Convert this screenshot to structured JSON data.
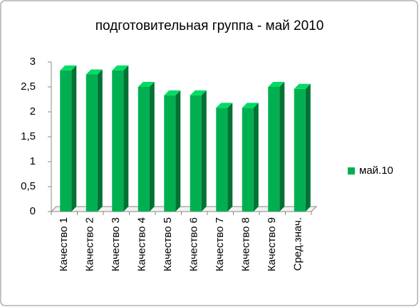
{
  "chart_data": {
    "type": "bar3d",
    "title": "подготовительная группа - май 2010",
    "categories": [
      "Качество 1",
      "Качество 2",
      "Качество 3",
      "Качество 4",
      "Качество 5",
      "Качество 6",
      "Качество 7",
      "Качество 8",
      "Качество 9",
      "Сред.знач."
    ],
    "series": [
      {
        "name": "май.10",
        "color": "#00b050",
        "values": [
          2.83,
          2.75,
          2.83,
          2.5,
          2.33,
          2.33,
          2.08,
          2.08,
          2.5,
          2.46
        ]
      }
    ],
    "ylim": [
      0,
      3
    ],
    "yticks": [
      0,
      {
        "value": 0.5,
        "label": "0,5"
      },
      1,
      {
        "value": 1.5,
        "label": "1,5"
      },
      2,
      {
        "value": 2.5,
        "label": "2,5"
      },
      3
    ],
    "grid": false,
    "legend": "right"
  }
}
